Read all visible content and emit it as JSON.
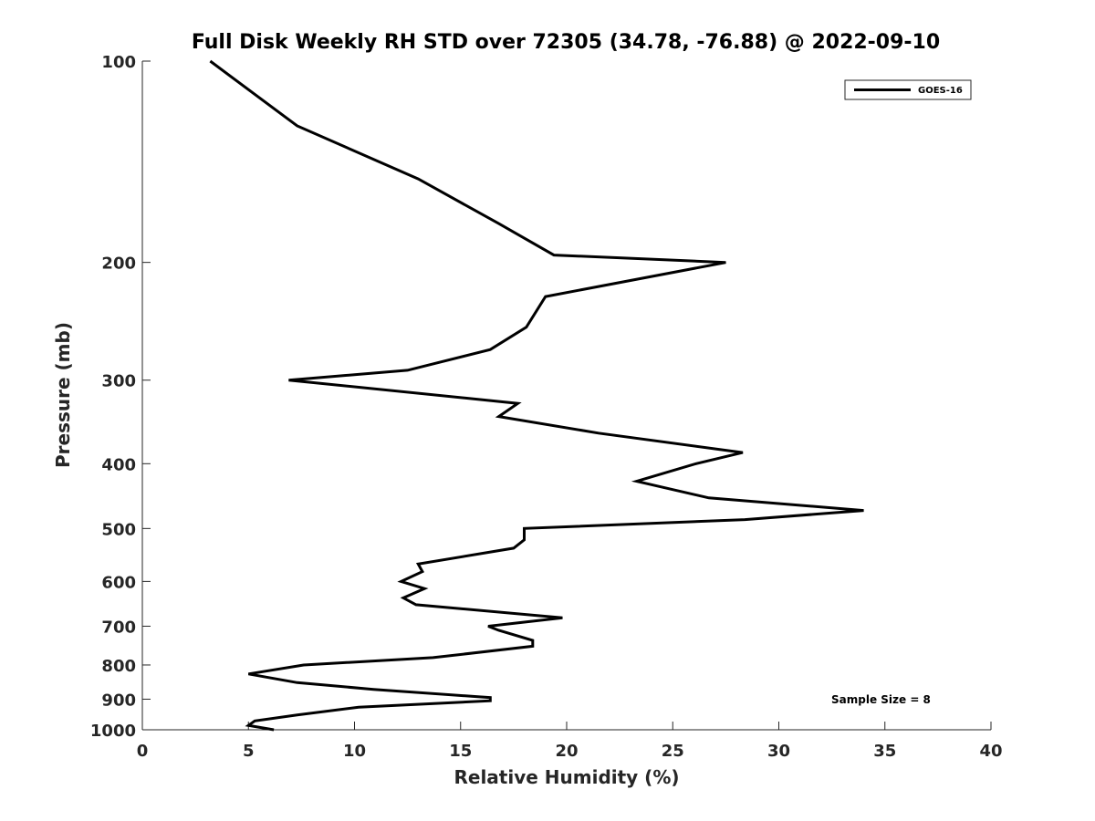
{
  "chart_data": {
    "type": "line",
    "title": "Full Disk Weekly RH STD over 72305 (34.78, -76.88) @ 2022-09-10",
    "xlabel": "Relative Humidity (%)",
    "ylabel": "Pressure (mb)",
    "xlim": [
      0,
      40
    ],
    "ylim": [
      100,
      1000
    ],
    "y_scale": "log",
    "y_reversed": true,
    "xticks": [
      0,
      5,
      10,
      15,
      20,
      25,
      30,
      35,
      40
    ],
    "yticks": [
      100,
      200,
      300,
      400,
      500,
      600,
      700,
      800,
      900,
      1000
    ],
    "grid": false,
    "legend_position": "top-right",
    "annotation": "Sample Size = 8",
    "series": [
      {
        "name": "GOES-16",
        "color": "#000000",
        "x": [
          3.2,
          7.3,
          13.0,
          16.8,
          19.4,
          27.5,
          19.0,
          18.1,
          16.4,
          12.5,
          6.9,
          17.7,
          16.8,
          21.5,
          28.3,
          26.1,
          23.3,
          26.7,
          34.0,
          28.4,
          18.0,
          18.0,
          17.5,
          13.0,
          13.2,
          12.2,
          13.3,
          12.3,
          12.9,
          19.8,
          16.3,
          16.8,
          18.4,
          18.4,
          13.7,
          7.6,
          5.0,
          7.3,
          10.9,
          16.4,
          16.4,
          10.2,
          7.3,
          5.3,
          5.0,
          6.2
        ],
        "y": [
          100,
          125,
          150,
          175,
          195,
          200,
          225,
          250,
          270,
          290,
          300,
          325,
          340,
          360,
          385,
          400,
          425,
          450,
          470,
          485,
          500,
          520,
          535,
          565,
          580,
          600,
          615,
          635,
          650,
          680,
          700,
          710,
          735,
          750,
          780,
          800,
          825,
          850,
          870,
          895,
          905,
          925,
          950,
          970,
          985,
          1000
        ]
      }
    ]
  }
}
